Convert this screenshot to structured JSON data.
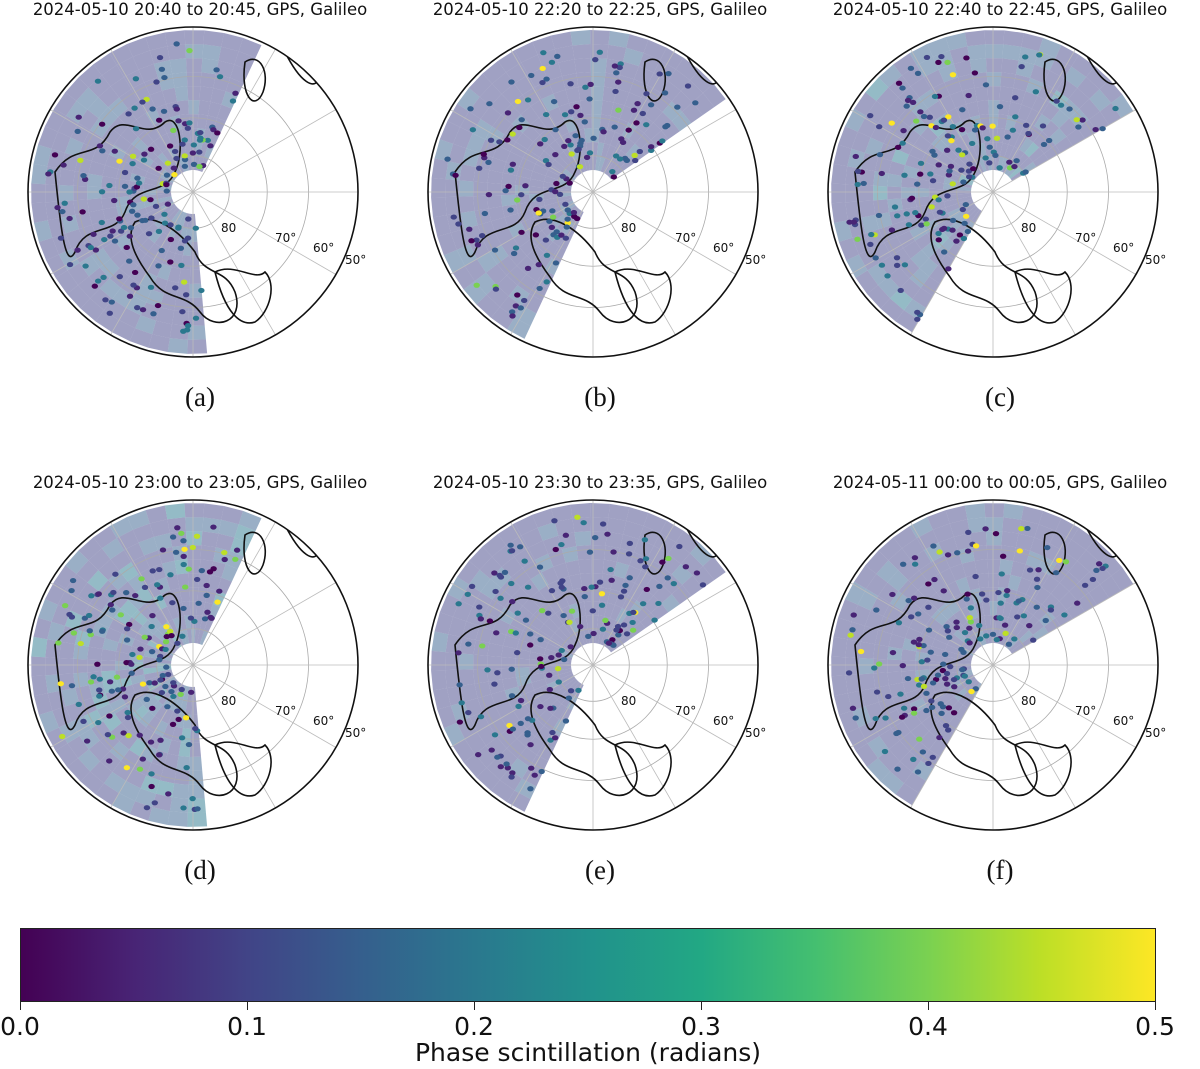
{
  "panels": [
    {
      "id": "a",
      "title": "2024-05-10 20:40 to 20:45, GPS, Galileo",
      "caption": "(a)",
      "rot": -35,
      "level": 0.3
    },
    {
      "id": "b",
      "title": "2024-05-10 22:20 to 22:25, GPS, Galileo",
      "caption": "(b)",
      "rot": -5,
      "level": 0.25
    },
    {
      "id": "c",
      "title": "2024-05-10 22:40 to 22:45, GPS, Galileo",
      "caption": "(c)",
      "rot": 0,
      "level": 0.35
    },
    {
      "id": "d",
      "title": "2024-05-10 23:00 to 23:05, GPS, Galileo",
      "caption": "(d)",
      "rot": -35,
      "level": 0.4
    },
    {
      "id": "e",
      "title": "2024-05-10 23:30 to 23:35, GPS, Galileo",
      "caption": "(e)",
      "rot": -5,
      "level": 0.2
    },
    {
      "id": "f",
      "title": "2024-05-11 00:00 to 00:05, GPS, Galileo",
      "caption": "(f)",
      "rot": 0,
      "level": 0.25
    }
  ],
  "lat_labels": [
    "80",
    "70°",
    "60°",
    "50°"
  ],
  "colorbar": {
    "label": "Phase scintillation (radians)",
    "ticks": [
      "0.0",
      "0.1",
      "0.2",
      "0.3",
      "0.4",
      "0.5"
    ],
    "range": [
      0.0,
      0.5
    ],
    "colormap": "viridis",
    "colors": [
      "#440154",
      "#482475",
      "#414487",
      "#355f8d",
      "#2a788e",
      "#21918c",
      "#22a884",
      "#44bf70",
      "#7ad151",
      "#bddf26",
      "#fde725"
    ]
  }
}
